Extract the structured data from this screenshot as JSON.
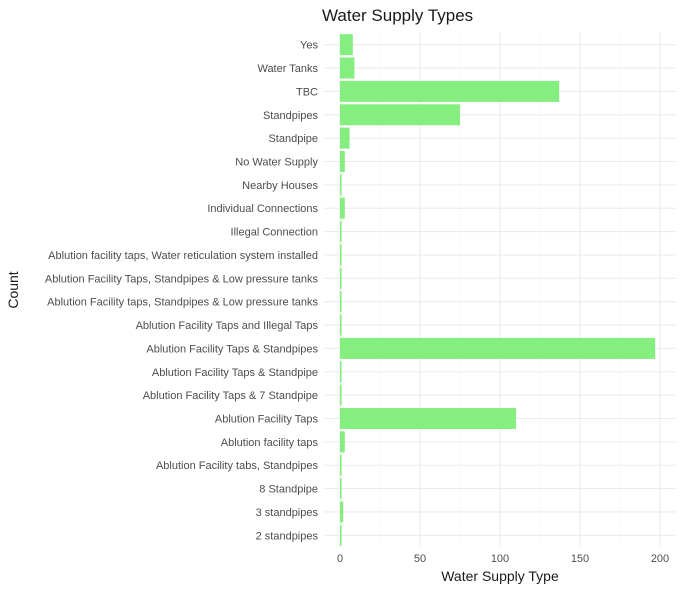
{
  "chart_data": {
    "type": "bar",
    "orientation": "horizontal",
    "title": "Water Supply Types",
    "xlabel": "Water Supply Type",
    "ylabel": "Count",
    "xlim": [
      0,
      200
    ],
    "x_ticks": [
      0,
      50,
      100,
      150,
      200
    ],
    "bar_color": "#84ef7f",
    "grid": true,
    "categories": [
      "Yes",
      "Water Tanks",
      "TBC",
      "Standpipes",
      "Standpipe",
      "No Water Supply",
      "Nearby Houses",
      "Individual Connections",
      "Illegal Connection",
      "Ablution facility taps, Water reticulation system installed",
      "Ablution Facility Taps, Standpipes & Low pressure tanks",
      "Ablution Facility taps, Standpipes & Low pressure tanks",
      "Ablution Facility Taps and Illegal Taps",
      "Ablution Facility Taps & Standpipes",
      "Ablution Facility Taps & Standpipe",
      "Ablution Facility Taps & 7 Standpipe",
      "Ablution Facility Taps",
      "Ablution facility taps",
      "Ablution Facility tabs, Standpipes",
      "8 Standpipe",
      "3 standpipes",
      "2 standpipes"
    ],
    "values": [
      8,
      9,
      137,
      75,
      6,
      3,
      1,
      3,
      1,
      1,
      1,
      1,
      1,
      197,
      1,
      1,
      110,
      3,
      1,
      1,
      2,
      1
    ]
  }
}
